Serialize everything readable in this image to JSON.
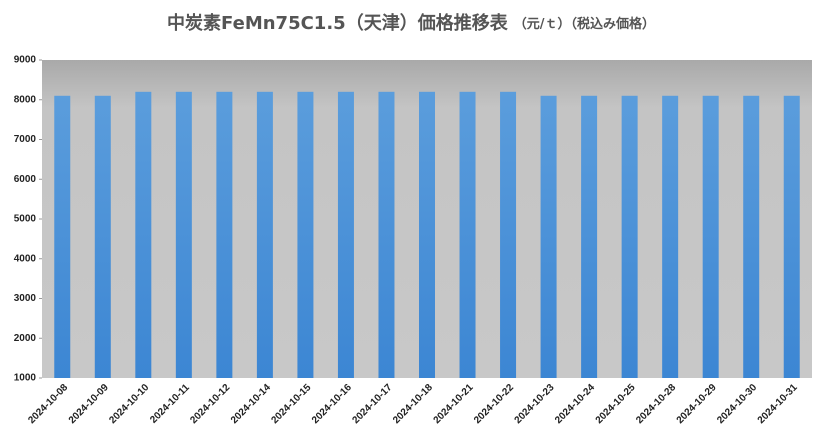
{
  "chart_data": {
    "type": "bar",
    "title": "中炭素FeMn75C1.5（天津）価格推移表",
    "subtitle": "（元/ｔ）（税込み価格）",
    "categories": [
      "2024-10-08",
      "2024-10-09",
      "2024-10-10",
      "2024-10-11",
      "2024-10-12",
      "2024-10-14",
      "2024-10-15",
      "2024-10-16",
      "2024-10-17",
      "2024-10-18",
      "2024-10-21",
      "2024-10-22",
      "2024-10-23",
      "2024-10-24",
      "2024-10-25",
      "2024-10-28",
      "2024-10-29",
      "2024-10-30",
      "2024-10-31"
    ],
    "values": [
      8100,
      8100,
      8200,
      8200,
      8200,
      8200,
      8200,
      8200,
      8200,
      8200,
      8200,
      8200,
      8100,
      8100,
      8100,
      8100,
      8100,
      8100,
      8100
    ],
    "color": "#4a90d9",
    "ylim": [
      1000,
      9000
    ],
    "yticks": [
      1000,
      2000,
      3000,
      4000,
      5000,
      6000,
      7000,
      8000,
      9000
    ],
    "grid": false
  }
}
